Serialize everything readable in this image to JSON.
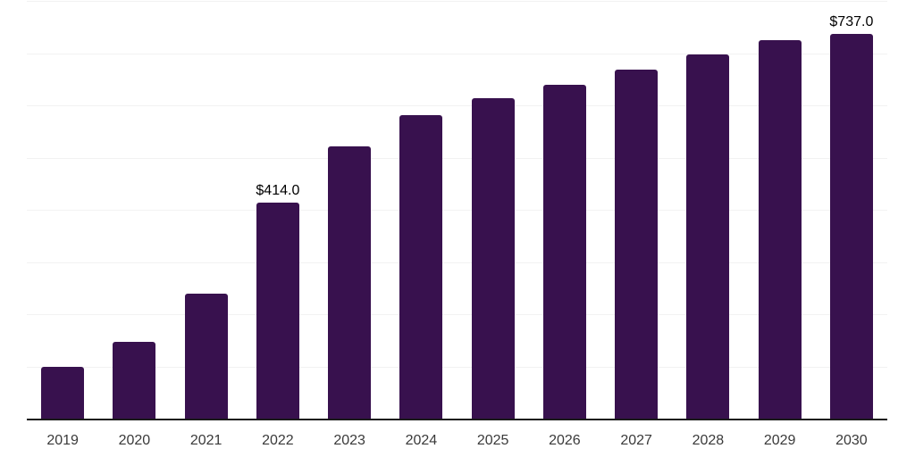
{
  "chart": {
    "bar_color": "#38114e",
    "axis_color": "#1a1a1a",
    "gridline_color": "#f2f2f2",
    "tick_label_color": "#3a3a3a",
    "data_label_color": "#000000",
    "background_color": "#ffffff"
  },
  "chart_data": {
    "type": "bar",
    "title": "",
    "xlabel": "",
    "ylabel": "",
    "categories": [
      "2019",
      "2020",
      "2021",
      "2022",
      "2023",
      "2024",
      "2025",
      "2026",
      "2027",
      "2028",
      "2029",
      "2030"
    ],
    "values": [
      100,
      147,
      240,
      414,
      521,
      581,
      614,
      639,
      669,
      697,
      725,
      737
    ],
    "data_labels": [
      "",
      "",
      "",
      "$414.0",
      "",
      "",
      "",
      "",
      "",
      "",
      "",
      "$737.0"
    ],
    "ylim": [
      0,
      800
    ],
    "grid_step": 100,
    "grid": true,
    "legend": false
  }
}
